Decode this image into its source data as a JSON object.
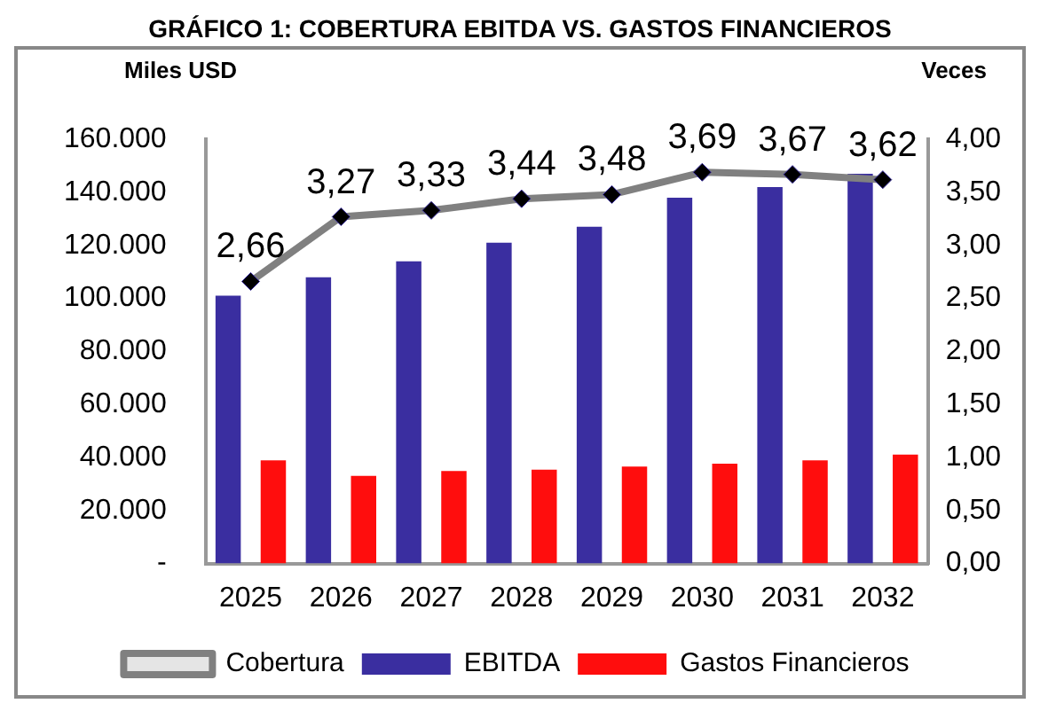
{
  "chart_data": {
    "type": "bar",
    "title": "GRÁFICO 1: COBERTURA EBITDA VS. GASTOS FINANCIEROS",
    "ylabel": "Miles USD",
    "y2label": "Veces",
    "categories": [
      "2025",
      "2026",
      "2027",
      "2028",
      "2029",
      "2030",
      "2031",
      "2032"
    ],
    "series": [
      {
        "name": "EBITDA",
        "color": "#3a2ea0",
        "values": [
          101000,
          108000,
          114000,
          121000,
          127000,
          138000,
          142000,
          147000
        ]
      },
      {
        "name": "Gastos Financieros",
        "color": "#ff0d0d",
        "values": [
          38900,
          33100,
          34900,
          35400,
          36600,
          37700,
          38900,
          41100
        ]
      },
      {
        "name": "Cobertura",
        "type": "line",
        "axis": "y2",
        "color": "#808080",
        "marker": "diamond",
        "values": [
          2.66,
          3.27,
          3.33,
          3.44,
          3.48,
          3.69,
          3.67,
          3.62
        ],
        "value_labels": [
          "2,66",
          "3,27",
          "3,33",
          "3,44",
          "3,48",
          "3,69",
          "3,67",
          "3,62"
        ]
      }
    ],
    "ylim": [
      0,
      160000
    ],
    "yticks": [
      {
        "value": 0,
        "label": "-"
      },
      {
        "value": 20000,
        "label": "20.000"
      },
      {
        "value": 40000,
        "label": "40.000"
      },
      {
        "value": 60000,
        "label": "60.000"
      },
      {
        "value": 80000,
        "label": "80.000"
      },
      {
        "value": 100000,
        "label": "100.000"
      },
      {
        "value": 120000,
        "label": "120.000"
      },
      {
        "value": 140000,
        "label": "140.000"
      },
      {
        "value": 160000,
        "label": "160.000"
      }
    ],
    "y2lim": [
      0,
      4
    ],
    "y2ticks": [
      {
        "value": 0,
        "label": "0,00"
      },
      {
        "value": 0.5,
        "label": "0,50"
      },
      {
        "value": 1,
        "label": "1,00"
      },
      {
        "value": 1.5,
        "label": "1,50"
      },
      {
        "value": 2,
        "label": "2,00"
      },
      {
        "value": 2.5,
        "label": "2,50"
      },
      {
        "value": 3,
        "label": "3,00"
      },
      {
        "value": 3.5,
        "label": "3,50"
      },
      {
        "value": 4,
        "label": "4,00"
      }
    ],
    "grid": false,
    "legend": "bottom"
  }
}
